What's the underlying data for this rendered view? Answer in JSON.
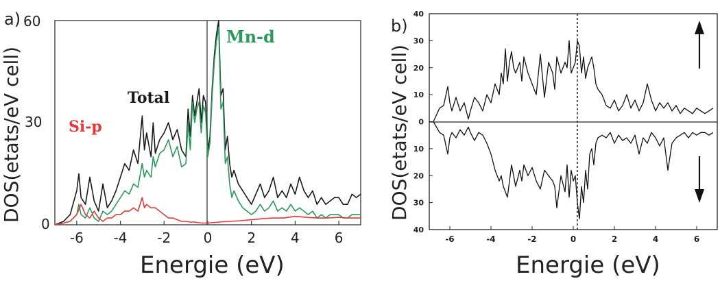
{
  "chart_data": [
    {
      "type": "line",
      "panel_label": "a)",
      "xlabel": "Energie (eV)",
      "ylabel": "DOS(etats/eV cell)",
      "xlim": [
        -7,
        7
      ],
      "ylim": [
        0,
        60
      ],
      "xticks": [
        "-6",
        "-4",
        "-2",
        "0",
        "2",
        "4",
        "6"
      ],
      "yticks": [
        "0",
        "30",
        "60"
      ],
      "fermi_line": 0,
      "series": [
        {
          "name": "Total",
          "color": "#1a1a1a",
          "x": [
            -7,
            -6.6,
            -6.3,
            -6.0,
            -5.9,
            -5.8,
            -5.6,
            -5.4,
            -5.2,
            -5.0,
            -4.8,
            -4.6,
            -4.4,
            -4.2,
            -4.0,
            -3.8,
            -3.6,
            -3.4,
            -3.2,
            -3.0,
            -2.9,
            -2.8,
            -2.6,
            -2.5,
            -2.4,
            -2.2,
            -2.0,
            -1.8,
            -1.6,
            -1.4,
            -1.2,
            -1.0,
            -0.9,
            -0.8,
            -0.7,
            -0.6,
            -0.5,
            -0.4,
            -0.3,
            -0.2,
            -0.1,
            0.0,
            0.1,
            0.2,
            0.3,
            0.4,
            0.5,
            0.6,
            0.7,
            0.8,
            0.9,
            1.0,
            1.1,
            1.2,
            1.4,
            1.6,
            1.8,
            2.0,
            2.2,
            2.4,
            2.6,
            2.8,
            3.0,
            3.2,
            3.4,
            3.6,
            3.8,
            4.0,
            4.2,
            4.4,
            4.6,
            4.8,
            5.0,
            5.2,
            5.4,
            5.6,
            5.8,
            6.0,
            6.2,
            6.4,
            6.6,
            6.8,
            7.0
          ],
          "values": [
            0,
            1,
            3,
            10,
            15,
            8,
            6,
            14,
            7,
            4,
            12,
            5,
            7,
            10,
            14,
            18,
            16,
            22,
            18,
            32,
            22,
            27,
            20,
            30,
            21,
            25,
            27,
            30,
            25,
            28,
            22,
            20,
            34,
            26,
            38,
            32,
            36,
            40,
            30,
            38,
            36,
            22,
            26,
            40,
            50,
            56,
            60,
            38,
            40,
            22,
            26,
            18,
            14,
            16,
            12,
            10,
            8,
            6,
            9,
            12,
            8,
            10,
            14,
            8,
            10,
            8,
            12,
            9,
            14,
            10,
            8,
            10,
            6,
            8,
            6,
            7,
            8,
            8,
            6,
            6,
            9,
            8,
            9
          ]
        },
        {
          "name": "Mn-d",
          "color": "#2a9a5a",
          "x": [
            -7,
            -6.6,
            -6.3,
            -6.0,
            -5.9,
            -5.8,
            -5.6,
            -5.4,
            -5.2,
            -5.0,
            -4.8,
            -4.6,
            -4.4,
            -4.2,
            -4.0,
            -3.8,
            -3.6,
            -3.4,
            -3.2,
            -3.0,
            -2.9,
            -2.8,
            -2.6,
            -2.5,
            -2.4,
            -2.2,
            -2.0,
            -1.8,
            -1.6,
            -1.4,
            -1.2,
            -1.0,
            -0.9,
            -0.8,
            -0.7,
            -0.6,
            -0.5,
            -0.4,
            -0.3,
            -0.2,
            -0.1,
            0.0,
            0.1,
            0.2,
            0.3,
            0.4,
            0.5,
            0.6,
            0.7,
            0.8,
            0.9,
            1.0,
            1.1,
            1.2,
            1.4,
            1.6,
            1.8,
            2.0,
            2.2,
            2.4,
            2.6,
            2.8,
            3.0,
            3.2,
            3.4,
            3.6,
            3.8,
            4.0,
            4.2,
            4.4,
            4.6,
            4.8,
            5.0,
            5.2,
            5.4,
            5.6,
            5.8,
            6.0,
            6.2,
            6.4,
            6.6,
            6.8,
            7.0
          ],
          "values": [
            0,
            0.5,
            1,
            3,
            6,
            3,
            2,
            5,
            2,
            1,
            4,
            3,
            4,
            6,
            8,
            10,
            9,
            12,
            11,
            18,
            14,
            16,
            14,
            20,
            17,
            21,
            22,
            25,
            20,
            23,
            17,
            18,
            30,
            22,
            36,
            30,
            34,
            36,
            27,
            35,
            33,
            20,
            24,
            38,
            48,
            54,
            58,
            34,
            36,
            18,
            20,
            12,
            8,
            10,
            7,
            5,
            4,
            3,
            4,
            6,
            4,
            5,
            7,
            4,
            5,
            4,
            6,
            4,
            5,
            4,
            3,
            4,
            2,
            3,
            2,
            3,
            3,
            3,
            2,
            2,
            3,
            3,
            3
          ]
        },
        {
          "name": "Si-p",
          "color": "#e03a3a",
          "x": [
            -7,
            -6.6,
            -6.3,
            -6.0,
            -5.8,
            -5.6,
            -5.4,
            -5.2,
            -5.0,
            -4.8,
            -4.6,
            -4.4,
            -4.2,
            -4.0,
            -3.8,
            -3.6,
            -3.4,
            -3.2,
            -3.0,
            -2.9,
            -2.8,
            -2.6,
            -2.4,
            -2.2,
            -2.0,
            -1.8,
            -1.6,
            -1.4,
            -1.2,
            -1.0,
            -0.8,
            -0.6,
            -0.4,
            -0.2,
            0.0,
            0.5,
            1.0,
            1.5,
            2.0,
            2.5,
            3.0,
            3.5,
            4.0,
            4.5,
            5.0,
            5.5,
            6.0,
            6.5,
            7.0
          ],
          "values": [
            0,
            0.5,
            1,
            3,
            6,
            3,
            2,
            4,
            2,
            1,
            2,
            2,
            3,
            3,
            4,
            4,
            5,
            4,
            8,
            5,
            6,
            5,
            5,
            4,
            3,
            2,
            2,
            1.5,
            1,
            1,
            0.8,
            0.8,
            0.6,
            0.5,
            0.5,
            0.8,
            1,
            1.2,
            1.5,
            1.8,
            2,
            2,
            2.5,
            2.2,
            2,
            2,
            2.2,
            2,
            2
          ]
        }
      ]
    },
    {
      "type": "line",
      "panel_label": "b)",
      "xlabel": "Energie (eV)",
      "ylabel": "DOS(etats/eV cell)",
      "xlim": [
        -7,
        7
      ],
      "ylim": [
        -40,
        40
      ],
      "xticks": [
        "-6",
        "-4",
        "-2",
        "0",
        "2",
        "4",
        "6"
      ],
      "yticks_up": [
        "0",
        "10",
        "20",
        "30",
        "40"
      ],
      "yticks_down": [
        "10",
        "20",
        "30",
        "40"
      ],
      "fermi_line": 0,
      "series": [
        {
          "name": "spin-up",
          "color": "#111111",
          "x": [
            -6.8,
            -6.5,
            -6.3,
            -6.1,
            -6.0,
            -5.9,
            -5.7,
            -5.5,
            -5.3,
            -5.1,
            -5.0,
            -4.8,
            -4.6,
            -4.4,
            -4.2,
            -4.0,
            -3.8,
            -3.6,
            -3.5,
            -3.4,
            -3.3,
            -3.2,
            -3.1,
            -3.0,
            -2.9,
            -2.8,
            -2.6,
            -2.5,
            -2.4,
            -2.2,
            -2.0,
            -1.8,
            -1.6,
            -1.4,
            -1.2,
            -1.0,
            -0.9,
            -0.8,
            -0.6,
            -0.4,
            -0.3,
            -0.2,
            -0.1,
            0.0,
            0.1,
            0.2,
            0.3,
            0.4,
            0.5,
            0.6,
            0.7,
            0.8,
            0.9,
            1.0,
            1.1,
            1.2,
            1.4,
            1.6,
            1.8,
            2.0,
            2.2,
            2.4,
            2.6,
            2.8,
            3.0,
            3.2,
            3.4,
            3.6,
            3.8,
            4.0,
            4.2,
            4.4,
            4.6,
            4.8,
            5.0,
            5.2,
            5.4,
            5.6,
            5.8,
            6.0,
            6.2,
            6.4,
            6.6,
            6.8
          ],
          "values": [
            0,
            5,
            6,
            13,
            7,
            4,
            9,
            4,
            7,
            1,
            4,
            9,
            7,
            4,
            10,
            7,
            14,
            10,
            18,
            14,
            27,
            15,
            22,
            26,
            20,
            18,
            22,
            15,
            24,
            18,
            14,
            10,
            25,
            9,
            22,
            18,
            12,
            24,
            18,
            22,
            20,
            30,
            18,
            20,
            22,
            30,
            28,
            18,
            24,
            16,
            20,
            22,
            24,
            20,
            14,
            12,
            10,
            6,
            5,
            8,
            4,
            6,
            10,
            5,
            8,
            4,
            7,
            14,
            8,
            4,
            7,
            5,
            7,
            4,
            6,
            3,
            5,
            4,
            3,
            5,
            4,
            3,
            4,
            5
          ]
        },
        {
          "name": "spin-down",
          "color": "#111111",
          "x": [
            -6.8,
            -6.5,
            -6.3,
            -6.1,
            -6.0,
            -5.9,
            -5.7,
            -5.5,
            -5.3,
            -5.1,
            -5.0,
            -4.8,
            -4.6,
            -4.4,
            -4.2,
            -4.0,
            -3.8,
            -3.6,
            -3.5,
            -3.4,
            -3.3,
            -3.2,
            -3.1,
            -3.0,
            -2.9,
            -2.8,
            -2.6,
            -2.5,
            -2.4,
            -2.2,
            -2.0,
            -1.8,
            -1.6,
            -1.4,
            -1.2,
            -1.0,
            -0.9,
            -0.8,
            -0.6,
            -0.4,
            -0.3,
            -0.2,
            -0.1,
            0.0,
            0.1,
            0.2,
            0.3,
            0.4,
            0.5,
            0.6,
            0.7,
            0.8,
            0.9,
            1.0,
            1.1,
            1.2,
            1.4,
            1.6,
            1.8,
            2.0,
            2.2,
            2.4,
            2.6,
            2.8,
            3.0,
            3.2,
            3.4,
            3.6,
            3.8,
            4.0,
            4.2,
            4.4,
            4.6,
            4.8,
            5.0,
            5.2,
            5.4,
            5.6,
            5.8,
            6.0,
            6.2,
            6.4,
            6.6,
            6.8
          ],
          "values": [
            0,
            -4,
            -5,
            -12,
            -6,
            -4,
            -6,
            -3,
            -5,
            -2,
            -4,
            -7,
            -4,
            -5,
            -8,
            -12,
            -18,
            -22,
            -20,
            -24,
            -26,
            -28,
            -22,
            -16,
            -20,
            -24,
            -18,
            -22,
            -16,
            -20,
            -17,
            -22,
            -25,
            -18,
            -20,
            -22,
            -24,
            -32,
            -20,
            -26,
            -16,
            -28,
            -18,
            -22,
            -20,
            -30,
            -36,
            -24,
            -30,
            -18,
            -25,
            -12,
            -10,
            -16,
            -8,
            -6,
            -5,
            -6,
            -4,
            -8,
            -5,
            -7,
            -6,
            -8,
            -5,
            -12,
            -6,
            -8,
            -4,
            -6,
            -9,
            -6,
            -18,
            -8,
            -6,
            -5,
            -4,
            -6,
            -4,
            -5,
            -4,
            -4,
            -5,
            -4
          ]
        }
      ]
    }
  ],
  "labels": {
    "a": {
      "panel": "a)",
      "total": "Total",
      "mn": "Mn-d",
      "si": "Si-p",
      "y60": "60",
      "y30": "30",
      "y0": "0"
    },
    "b": {
      "panel": "b)"
    }
  }
}
